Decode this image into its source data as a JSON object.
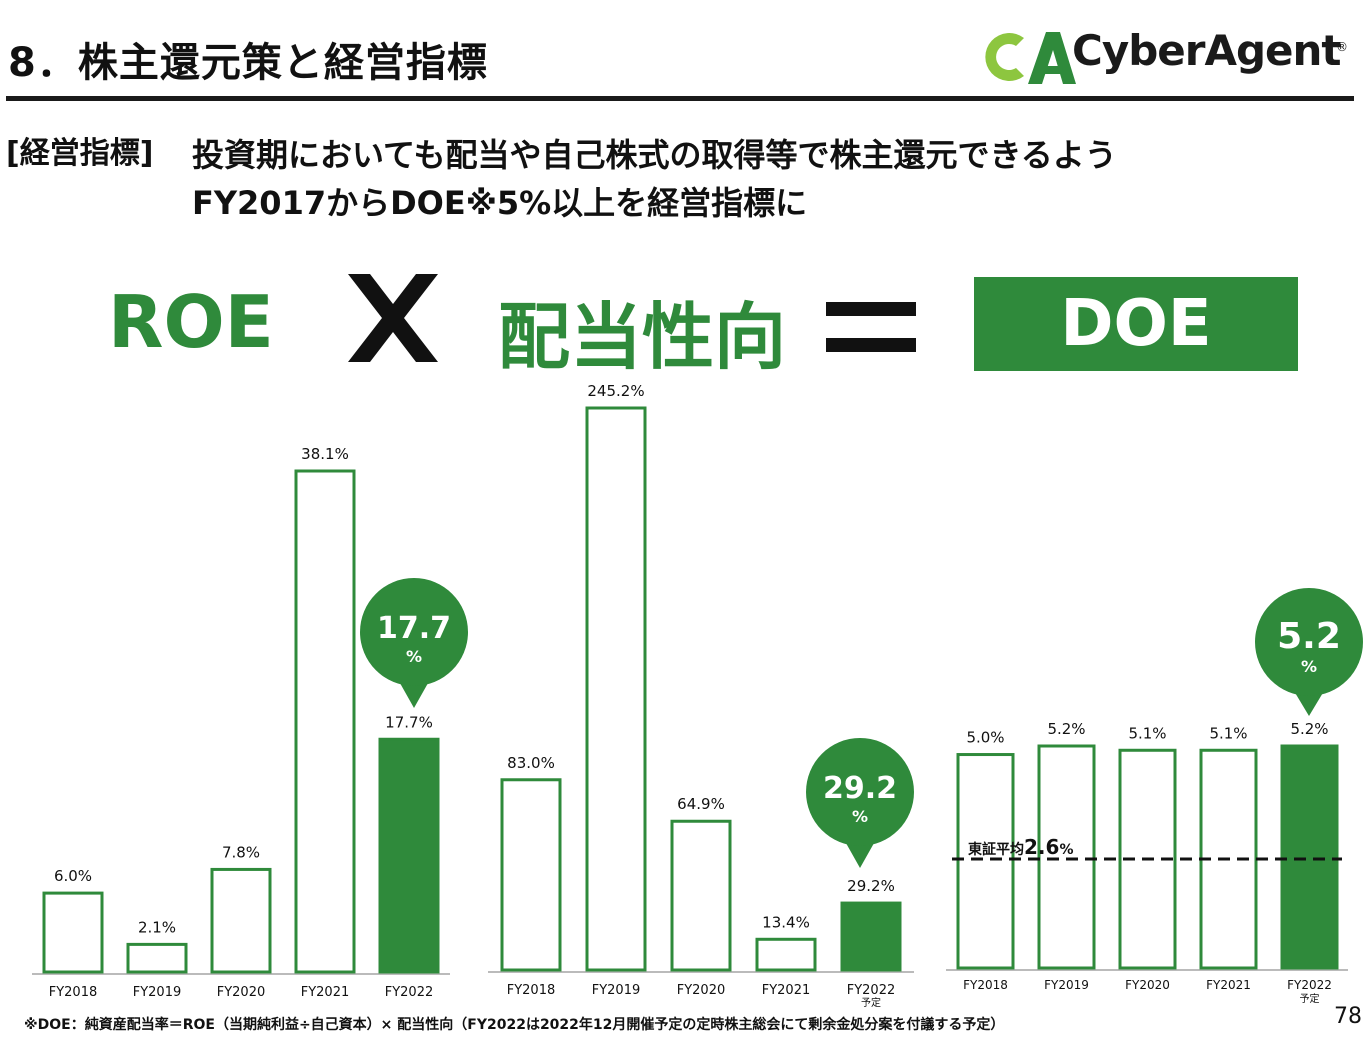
{
  "title": "8．株主還元策と経営指標",
  "logo": {
    "text": "CyberAgent",
    "reg": "®",
    "brand_color": "#8dc63f",
    "brand_color_dark": "#2f8a3b"
  },
  "tag": "[経営指標]",
  "message_line1": "投資期においても配当や自己株式の取得等で株主還元できるよう",
  "message_line2": "FY2017からDOE※5%以上を経営指標に",
  "formula": {
    "left": "ROE",
    "operator": "multiply",
    "middle": "配当性向",
    "equals": "equals",
    "right": "DOE"
  },
  "colors": {
    "accent": "#2f8a3b",
    "text": "#111111"
  },
  "chart_data": [
    {
      "type": "bar",
      "name": "ROE",
      "categories": [
        "FY2018",
        "FY2019",
        "FY2020",
        "FY2021",
        "FY2022"
      ],
      "values": [
        6.0,
        2.1,
        7.8,
        38.1,
        17.7
      ],
      "value_labels": [
        "6.0%",
        "2.1%",
        "7.8%",
        "38.1%",
        "17.7%"
      ],
      "highlight_index": 4,
      "callout": {
        "value": "17.7",
        "unit": "%"
      }
    },
    {
      "type": "bar",
      "name": "配当性向",
      "categories": [
        "FY2018",
        "FY2019",
        "FY2020",
        "FY2021",
        "FY2022"
      ],
      "sublabels": [
        "",
        "",
        "",
        "",
        "予定"
      ],
      "values": [
        83.0,
        245.2,
        64.9,
        13.4,
        29.2
      ],
      "value_labels": [
        "83.0%",
        "245.2%",
        "64.9%",
        "13.4%",
        "29.2%"
      ],
      "highlight_index": 4,
      "callout": {
        "value": "29.2",
        "unit": "%"
      }
    },
    {
      "type": "bar",
      "name": "DOE",
      "categories": [
        "FY2018",
        "FY2019",
        "FY2020",
        "FY2021",
        "FY2022"
      ],
      "sublabels": [
        "",
        "",
        "",
        "",
        "予定"
      ],
      "values": [
        5.0,
        5.2,
        5.1,
        5.1,
        5.2
      ],
      "value_labels": [
        "5.0%",
        "5.2%",
        "5.1%",
        "5.1%",
        "5.2%"
      ],
      "highlight_index": 4,
      "callout": {
        "value": "5.2",
        "unit": "%"
      },
      "reference_line": {
        "label": "東証平均",
        "label_value": "2.6",
        "label_unit": "%",
        "value": 2.6
      }
    }
  ],
  "footnote": "※DOE：純資産配当率＝ROE（当期純利益÷自己資本）× 配当性向（FY2022は2022年12月開催予定の定時株主総会にて剰余金処分案を付議する予定）",
  "page_number": "78"
}
